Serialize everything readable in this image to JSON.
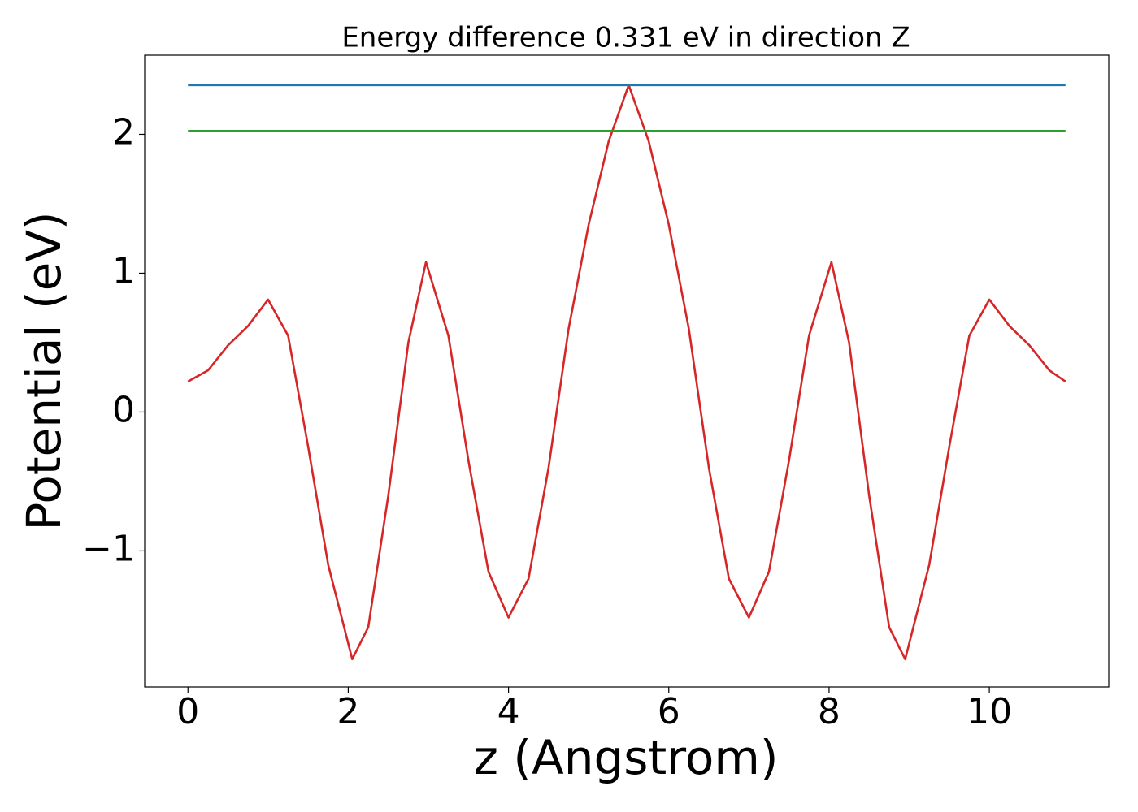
{
  "chart_data": {
    "type": "line",
    "title": "Energy difference 0.331 eV in direction Z",
    "xlabel": "z (Angstrom)",
    "ylabel": "Potential (eV)",
    "xlim": [
      -0.54,
      11.49
    ],
    "ylim": [
      -1.98,
      2.57
    ],
    "xticks": [
      0,
      2,
      4,
      6,
      8,
      10
    ],
    "yticks": [
      {
        "value": -1,
        "label": "−1"
      },
      0,
      1,
      2
    ],
    "series": [
      {
        "color": "#d62728",
        "x": [
          0,
          0.25,
          0.5,
          0.75,
          1.0,
          1.25,
          1.5,
          1.75,
          2.05,
          2.25,
          2.5,
          2.75,
          2.97,
          3.25,
          3.5,
          3.75,
          4.0,
          4.25,
          4.5,
          4.75,
          5.0,
          5.25,
          5.5,
          5.75,
          6.0,
          6.25,
          6.5,
          6.75,
          7.0,
          7.25,
          7.5,
          7.75,
          8.03,
          8.25,
          8.5,
          8.75,
          8.95,
          9.25,
          9.5,
          9.75,
          10.0,
          10.25,
          10.5,
          10.75,
          10.95
        ],
        "values": [
          0.22,
          0.3,
          0.48,
          0.62,
          0.81,
          0.55,
          -0.25,
          -1.1,
          -1.78,
          -1.55,
          -0.6,
          0.5,
          1.08,
          0.55,
          -0.35,
          -1.15,
          -1.48,
          -1.2,
          -0.4,
          0.6,
          1.35,
          1.95,
          2.355,
          1.95,
          1.35,
          0.6,
          -0.4,
          -1.2,
          -1.48,
          -1.15,
          -0.35,
          0.55,
          1.08,
          0.5,
          -0.6,
          -1.55,
          -1.78,
          -1.1,
          -0.25,
          0.55,
          0.81,
          0.62,
          0.48,
          0.3,
          0.22
        ]
      },
      {
        "color": "#1f77b4",
        "x": [
          0,
          10.95
        ],
        "values": [
          2.355,
          2.355
        ]
      },
      {
        "color": "#2ca02c",
        "x": [
          0,
          10.95
        ],
        "values": [
          2.024,
          2.024
        ]
      }
    ]
  }
}
